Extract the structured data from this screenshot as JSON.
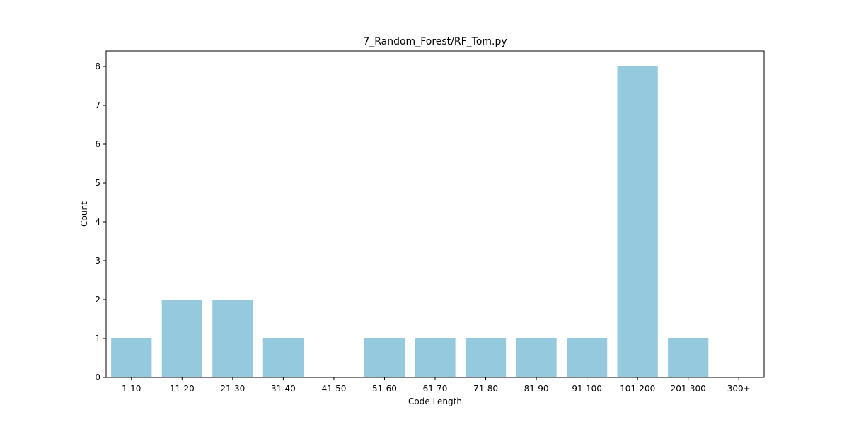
{
  "chart_data": {
    "type": "bar",
    "title": "7_Random_Forest/RF_Tom.py",
    "xlabel": "Code Length",
    "ylabel": "Count",
    "categories": [
      "1-10",
      "11-20",
      "21-30",
      "31-40",
      "41-50",
      "51-60",
      "61-70",
      "71-80",
      "81-90",
      "91-100",
      "101-200",
      "201-300",
      "300+"
    ],
    "values": [
      1,
      2,
      2,
      1,
      0,
      1,
      1,
      1,
      1,
      1,
      8,
      1,
      0
    ],
    "ylim": [
      0,
      8.4
    ],
    "yticks": [
      0,
      1,
      2,
      3,
      4,
      5,
      6,
      7,
      8
    ],
    "grid": false,
    "bar_color": "#94c9de"
  }
}
